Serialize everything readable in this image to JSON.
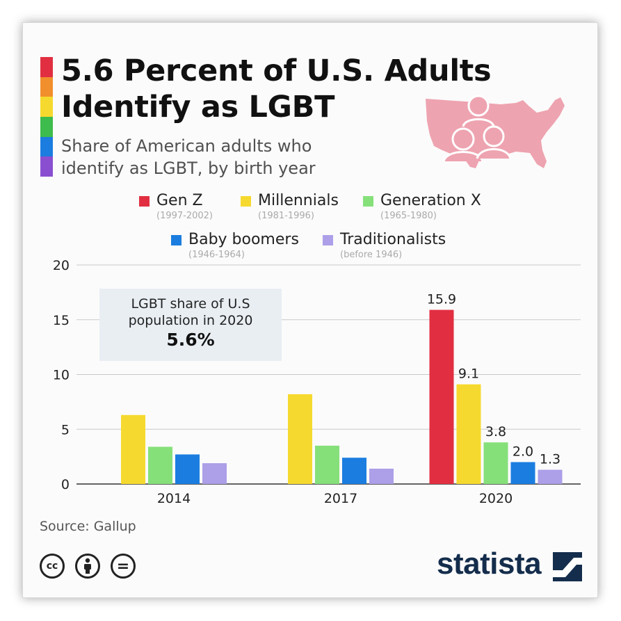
{
  "colors": {
    "gen_z": "#e12f41",
    "millennials": "#f6d92e",
    "gen_x": "#86e07a",
    "boomers": "#1b7de0",
    "traditionalists": "#ad9fe8",
    "brand": "#142d4c",
    "map": "#eea3b0",
    "stripes": [
      "#e12f41",
      "#f18f2d",
      "#f6d92e",
      "#3dbb4d",
      "#1b7de0",
      "#8a4fd0"
    ]
  },
  "header": {
    "title_line1": "5.6 Percent of U.S. Adults",
    "title_line2": "Identify as LGBT",
    "subtitle_line1": "Share of American adults who",
    "subtitle_line2": "identify as LGBT, by birth year",
    "map_icon": "us-map-people-icon"
  },
  "legend": [
    {
      "label": "Gen Z",
      "range": "(1997-2002)"
    },
    {
      "label": "Millennials",
      "range": "(1981-1996)"
    },
    {
      "label": "Generation X",
      "range": "(1965-1980)"
    },
    {
      "label": "Baby boomers",
      "range": "(1946-1964)"
    },
    {
      "label": "Traditionalists",
      "range": "(before 1946)"
    }
  ],
  "callout": {
    "line1": "LGBT share of U.S",
    "line2": "population in 2020",
    "value": "5.6%"
  },
  "footer": {
    "source": "Source: Gallup",
    "brand": "statista",
    "license_icons": [
      "cc-icon",
      "by-person-icon",
      "nd-equals-icon"
    ],
    "cc_text": "cc",
    "nd_text": "="
  },
  "chart_data": {
    "type": "bar",
    "categories": [
      "2014",
      "2017",
      "2020"
    ],
    "series": [
      {
        "name": "Gen Z",
        "values": [
          null,
          null,
          15.9
        ]
      },
      {
        "name": "Millennials",
        "values": [
          6.3,
          8.2,
          9.1
        ]
      },
      {
        "name": "Generation X",
        "values": [
          3.4,
          3.5,
          3.8
        ]
      },
      {
        "name": "Baby boomers",
        "values": [
          2.7,
          2.4,
          2.0
        ]
      },
      {
        "name": "Traditionalists",
        "values": [
          1.9,
          1.4,
          1.3
        ]
      }
    ],
    "data_labels": {
      "2020": [
        "15.9",
        "9.1",
        "3.8",
        "2.0",
        "1.3"
      ]
    },
    "yticks": [
      0,
      5,
      10,
      15,
      20
    ],
    "ylim": [
      0,
      20
    ],
    "title": "5.6 Percent of U.S. Adults Identify as LGBT",
    "xlabel": "",
    "ylabel": "",
    "grid": true,
    "legend_position": "top"
  }
}
